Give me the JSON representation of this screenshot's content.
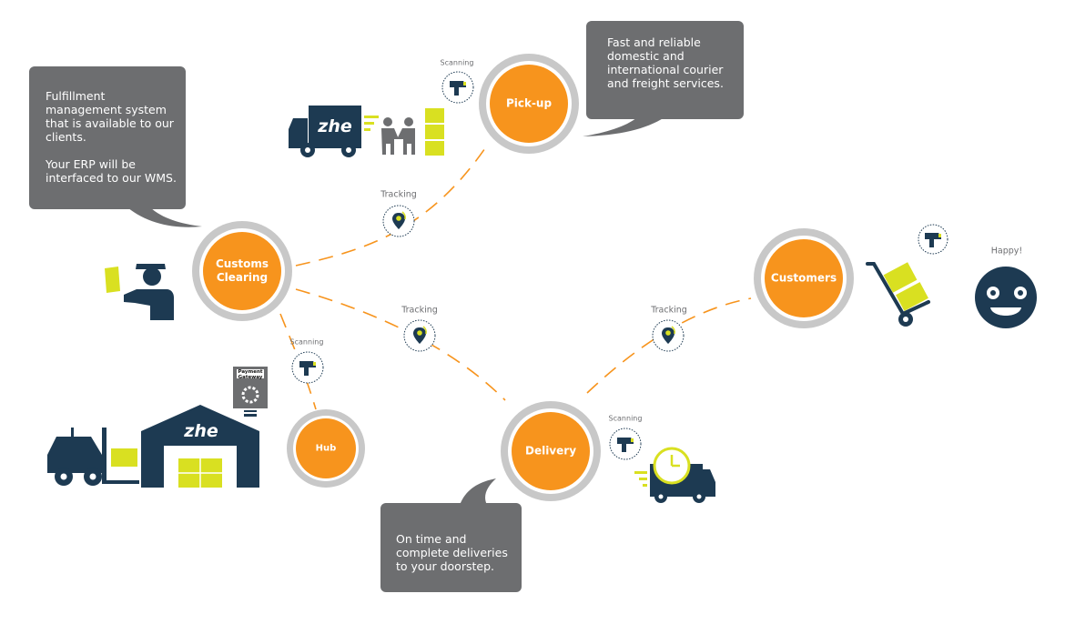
{
  "colors": {
    "orange": "#F7941D",
    "ring": "#C8C8C8",
    "navy": "#1D3A52",
    "lime": "#D9E021",
    "bubble": "#6D6E70",
    "label_gray": "#6D6E71"
  },
  "bubbles": {
    "left": {
      "line1": "Fulfillment management system that is available to our clients.",
      "line2": "Your ERP will be interfaced to our WMS."
    },
    "top": {
      "text": "Fast and reliable domestic and international courier and freight services."
    },
    "bottom": {
      "text": "On time and complete deliveries to your doorstep."
    }
  },
  "nodes": {
    "pickup": "Pick-up",
    "customs": "Customs\nClearing",
    "customers": "Customers",
    "hub": "Hub",
    "delivery": "Delivery"
  },
  "labels": {
    "scanning_pickup": "Scanning",
    "scanning_hub": "Scanning",
    "scanning_delivery": "Scanning",
    "tracking_1": "Tracking",
    "tracking_2": "Tracking",
    "tracking_3": "Tracking",
    "happy": "Happy!",
    "payment_gateway": "Payment\nGateway",
    "brand_truck": "zhe",
    "brand_warehouse": "zhe"
  },
  "icons": {
    "scanner": "barcode-scanner-icon",
    "tracking": "map-pin-icon",
    "truck": "delivery-truck-icon",
    "people": "handshake-people-icon",
    "boxes": "stacked-boxes-icon",
    "officer": "customs-officer-icon",
    "forklift": "forklift-icon",
    "warehouse": "warehouse-icon",
    "gateway": "payment-gateway-icon",
    "clock_truck": "fast-delivery-truck-icon",
    "hand_truck": "hand-truck-icon",
    "smiley": "happy-face-icon"
  }
}
